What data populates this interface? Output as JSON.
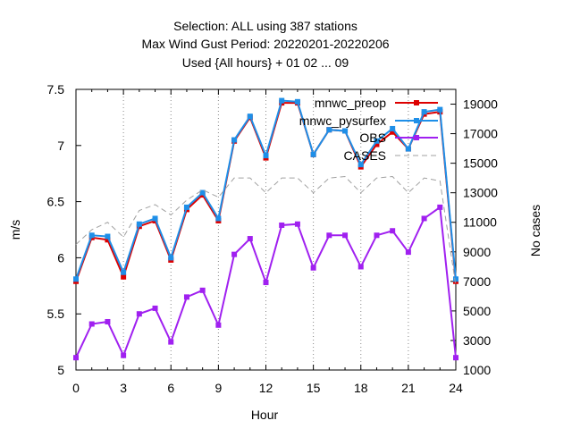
{
  "chart_data": {
    "type": "line",
    "title_lines": [
      "Selection: ALL using   387 stations",
      "Max Wind Gust   Period: 20220201-20220206",
      "Used {All hours} + 01 02 ... 09"
    ],
    "xlabel": "Hour",
    "ylabel": "m/s",
    "y2label": "No cases",
    "xlim": [
      0,
      24
    ],
    "ylim": [
      5,
      7.5
    ],
    "y2lim": [
      1000,
      20000
    ],
    "x_ticks": [
      "0",
      "3",
      "6",
      "9",
      "12",
      "15",
      "18",
      "21",
      "24"
    ],
    "x_tick_values": [
      0,
      3,
      6,
      9,
      12,
      15,
      18,
      21,
      24
    ],
    "y_ticks": [
      "5",
      "5.5",
      "6",
      "6.5",
      "7",
      "7.5"
    ],
    "y_tick_values": [
      5,
      5.5,
      6,
      6.5,
      7,
      7.5
    ],
    "y2_ticks": [
      "1000",
      "3000",
      "5000",
      "7000",
      "9000",
      "11000",
      "13000",
      "15000",
      "17000",
      "19000"
    ],
    "y2_tick_values": [
      1000,
      3000,
      5000,
      7000,
      9000,
      11000,
      13000,
      15000,
      17000,
      19000
    ],
    "grid": true,
    "legend_position": "top-right",
    "x": [
      0,
      1,
      2,
      3,
      4,
      5,
      6,
      7,
      8,
      9,
      10,
      11,
      12,
      13,
      14,
      15,
      16,
      17,
      18,
      19,
      20,
      21,
      22,
      23,
      24
    ],
    "series": [
      {
        "name": "mnwc_preop",
        "color": "#dd0000",
        "axis": "left",
        "values": [
          5.79,
          6.18,
          6.16,
          5.83,
          6.28,
          6.33,
          5.98,
          6.43,
          6.56,
          6.33,
          7.04,
          7.25,
          6.89,
          7.38,
          7.38,
          6.92,
          7.14,
          7.13,
          6.81,
          7.01,
          7.12,
          6.97,
          7.28,
          7.3,
          5.79
        ]
      },
      {
        "name": "mnwc_pysurfex",
        "color": "#1e8fe8",
        "axis": "left",
        "values": [
          5.81,
          6.2,
          6.19,
          5.87,
          6.3,
          6.35,
          6.0,
          6.45,
          6.58,
          6.35,
          7.05,
          7.26,
          6.91,
          7.4,
          7.39,
          6.92,
          7.14,
          7.13,
          6.83,
          7.04,
          7.15,
          6.97,
          7.3,
          7.32,
          5.81
        ]
      },
      {
        "name": "OBS",
        "color": "#a020f0",
        "axis": "left",
        "values": [
          5.11,
          5.41,
          5.43,
          5.13,
          5.5,
          5.55,
          5.25,
          5.65,
          5.71,
          5.4,
          6.03,
          6.17,
          5.78,
          6.29,
          6.3,
          5.91,
          6.2,
          6.2,
          5.92,
          6.2,
          6.24,
          6.05,
          6.35,
          6.45,
          5.11
        ]
      },
      {
        "name": "CASES",
        "color": "#a0a0a0",
        "axis": "right",
        "values": [
          9500,
          10500,
          11000,
          10000,
          11800,
          12200,
          11500,
          12500,
          13200,
          12700,
          14000,
          14000,
          13000,
          14000,
          14000,
          13000,
          14000,
          14100,
          13000,
          14000,
          14100,
          13000,
          14000,
          13800,
          6700
        ]
      }
    ]
  }
}
